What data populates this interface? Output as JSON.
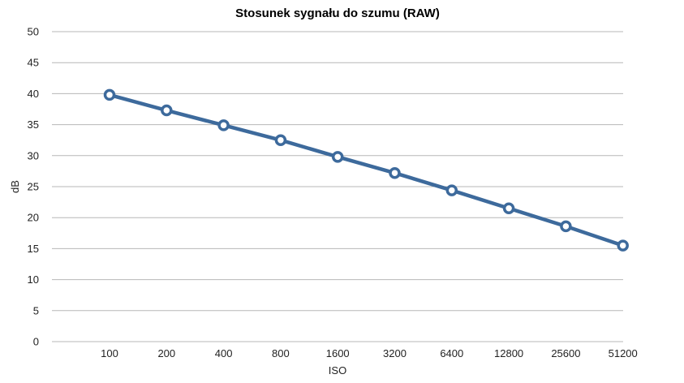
{
  "chart_data": {
    "type": "line",
    "title": "Stosunek sygnału do szumu (RAW)",
    "xlabel": "ISO",
    "ylabel": "dB",
    "categories": [
      "100",
      "200",
      "400",
      "800",
      "1600",
      "3200",
      "6400",
      "12800",
      "25600",
      "51200"
    ],
    "series": [
      {
        "values": [
          39.8,
          37.3,
          34.9,
          32.5,
          29.8,
          27.2,
          24.4,
          21.5,
          18.6,
          15.5
        ]
      }
    ],
    "ylim": [
      0,
      50
    ],
    "yticks": [
      0,
      5,
      10,
      15,
      20,
      25,
      30,
      35,
      40,
      45,
      50
    ],
    "grid": true,
    "legend": "none",
    "colors": {
      "line": "#3d6a9c",
      "marker_fill": "#ffffff",
      "grid": "#b7b7b7"
    }
  }
}
